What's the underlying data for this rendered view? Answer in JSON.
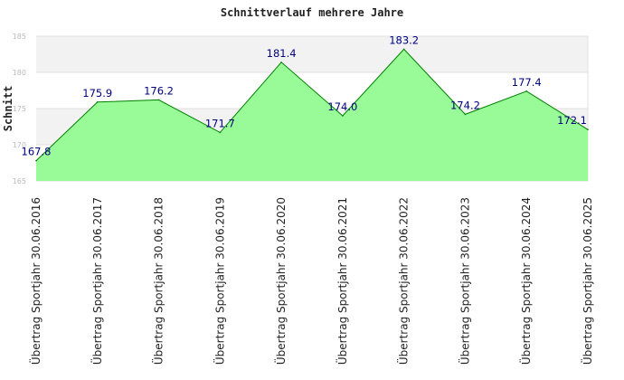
{
  "chart_data": {
    "type": "area",
    "title": "Schnittverlauf mehrere Jahre",
    "ylabel": "Schnitt",
    "xlabel": "",
    "ylim": [
      165,
      185
    ],
    "yticks": [
      165,
      170,
      175,
      180,
      185
    ],
    "grid": true,
    "categories": [
      "Übertrag Sportjahr 30.06.2016",
      "Übertrag Sportjahr 30.06.2017",
      "Übertrag Sportjahr 30.06.2018",
      "Übertrag Sportjahr 30.06.2019",
      "Übertrag Sportjahr 30.06.2020",
      "Übertrag Sportjahr 30.06.2021",
      "Übertrag Sportjahr 30.06.2022",
      "Übertrag Sportjahr 30.06.2023",
      "Übertrag Sportjahr 30.06.2024",
      "Übertrag Sportjahr 30.06.2025"
    ],
    "values": [
      167.8,
      175.9,
      176.2,
      171.7,
      181.4,
      174.0,
      183.2,
      174.2,
      177.4,
      172.1
    ],
    "value_labels": [
      "167.8",
      "175.9",
      "176.2",
      "171.7",
      "181.4",
      "174.0",
      "183.2",
      "174.2",
      "177.4",
      "172.1"
    ],
    "colors": {
      "fill": "#98fb98",
      "line": "#008000",
      "label": "#000080",
      "band": "#f2f2f2",
      "grid": "#e0e0e0"
    }
  }
}
